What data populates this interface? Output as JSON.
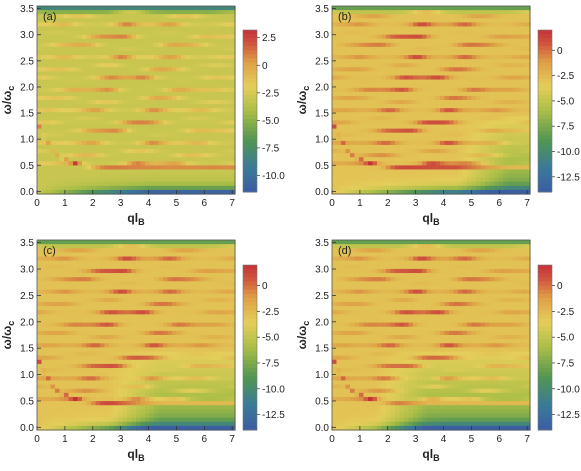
{
  "chart_data": [
    {
      "type": "heatmap",
      "panel_label": "(a)",
      "xlabel": "ql",
      "xlabel_sub": "B",
      "ylabel": "ω/ω",
      "ylabel_sub": "c",
      "xlim": [
        0,
        7.1
      ],
      "ylim": [
        -0.05,
        3.55
      ],
      "xticks": [
        "0",
        "1",
        "2",
        "3",
        "4",
        "5",
        "6",
        "7"
      ],
      "yticks": [
        "0.0",
        "0.5",
        "1.0",
        "1.5",
        "2.0",
        "2.5",
        "3.0",
        "3.5"
      ],
      "colorbar": {
        "min": -11.5,
        "max": 3.2,
        "ticks": [
          "2.5",
          "0",
          "-2.5",
          "-5.0",
          "-7.5",
          "-10.0"
        ],
        "tick_values": [
          2.5,
          0,
          -2.5,
          -5,
          -7.5,
          -10
        ]
      },
      "threshold_q": 99
    },
    {
      "type": "heatmap",
      "panel_label": "(b)",
      "xlabel": "ql",
      "xlabel_sub": "B",
      "ylabel": "ω/ω",
      "ylabel_sub": "c",
      "xlim": [
        0,
        7.1
      ],
      "ylim": [
        -0.05,
        3.55
      ],
      "xticks": [
        "0",
        "1",
        "2",
        "3",
        "4",
        "5",
        "6",
        "7"
      ],
      "yticks": [
        "0.0",
        "0.5",
        "1.0",
        "1.5",
        "2.0",
        "2.5",
        "3.0",
        "3.5"
      ],
      "colorbar": {
        "min": -14,
        "max": 2,
        "ticks": [
          "0",
          "-2.5",
          "-5.0",
          "-7.5",
          "-10.0",
          "-12.5"
        ],
        "tick_values": [
          0,
          -2.5,
          -5,
          -7.5,
          -10,
          -12.5
        ]
      },
      "threshold_q": 4.5
    },
    {
      "type": "heatmap",
      "panel_label": "(c)",
      "xlabel": "ql",
      "xlabel_sub": "B",
      "ylabel": "ω/ω",
      "ylabel_sub": "c",
      "xlim": [
        0,
        7.1
      ],
      "ylim": [
        -0.05,
        3.55
      ],
      "xticks": [
        "0",
        "1",
        "2",
        "3",
        "4",
        "5",
        "6",
        "7"
      ],
      "yticks": [
        "0.0",
        "0.5",
        "1.0",
        "1.5",
        "2.0",
        "2.5",
        "3.0",
        "3.5"
      ],
      "colorbar": {
        "min": -14,
        "max": 2,
        "ticks": [
          "0",
          "-2.5",
          "-5.0",
          "-7.5",
          "-10.0",
          "-12.5"
        ],
        "tick_values": [
          0,
          -2.5,
          -5,
          -7.5,
          -10,
          -12.5
        ]
      },
      "threshold_q": 2.6
    },
    {
      "type": "heatmap",
      "panel_label": "(d)",
      "xlabel": "ql",
      "xlabel_sub": "B",
      "ylabel": "ω/ω",
      "ylabel_sub": "c",
      "xlim": [
        0,
        7.1
      ],
      "ylim": [
        -0.05,
        3.55
      ],
      "xticks": [
        "0",
        "1",
        "2",
        "3",
        "4",
        "5",
        "6",
        "7"
      ],
      "yticks": [
        "0.0",
        "0.5",
        "1.0",
        "1.5",
        "2.0",
        "2.5",
        "3.0",
        "3.5"
      ],
      "colorbar": {
        "min": -14,
        "max": 2,
        "ticks": [
          "0",
          "-2.5",
          "-5.0",
          "-7.5",
          "-10.0",
          "-12.5"
        ],
        "tick_values": [
          0,
          -2.5,
          -5,
          -7.5,
          -10,
          -12.5
        ]
      },
      "threshold_q": 1.6
    }
  ]
}
